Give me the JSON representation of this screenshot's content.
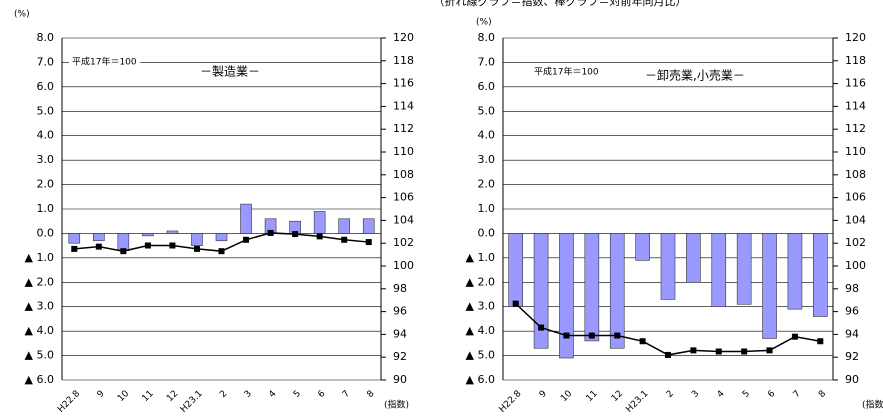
{
  "title": "（折れ線グラフ＝指数、棒グラフ＝対前年同月比）",
  "chart_data": [
    {
      "type": "bar",
      "ylabel": "(%)",
      "y2label": "(指数)",
      "annotations": [
        "平成17年＝100",
        "－製造業－"
      ],
      "categories": [
        "H22.8",
        "9",
        "10",
        "11",
        "12",
        "H23.1",
        "2",
        "3",
        "4",
        "5",
        "6",
        "7",
        "8"
      ],
      "series": [
        {
          "type": "bar",
          "color": "#9999ff",
          "values": [
            -0.4,
            -0.3,
            -0.7,
            -0.1,
            0.1,
            -0.5,
            -0.3,
            1.2,
            0.6,
            0.5,
            0.9,
            0.6,
            0.6
          ]
        },
        {
          "type": "line",
          "axis": "y2",
          "color": "#000000",
          "values": [
            101.5,
            101.7,
            101.3,
            101.8,
            101.8,
            101.5,
            101.3,
            102.3,
            102.9,
            102.8,
            102.6,
            102.3,
            102.1
          ]
        }
      ],
      "ylim": [
        -6,
        8
      ],
      "yticks": [
        {
          "value": 8,
          "label": "8.0"
        },
        {
          "value": 7,
          "label": "7.0"
        },
        {
          "value": 6,
          "label": "6.0"
        },
        {
          "value": 5,
          "label": "5.0"
        },
        {
          "value": 4,
          "label": "4.0"
        },
        {
          "value": 3,
          "label": "3.0"
        },
        {
          "value": 2,
          "label": "2.0"
        },
        {
          "value": 1,
          "label": "1.0"
        },
        {
          "value": 0,
          "label": "0.0"
        },
        {
          "value": -1,
          "label": "▲ 1.0"
        },
        {
          "value": -2,
          "label": "▲ 2.0"
        },
        {
          "value": -3,
          "label": "▲ 3.0"
        },
        {
          "value": -4,
          "label": "▲ 4.0"
        },
        {
          "value": -5,
          "label": "▲ 5.0"
        },
        {
          "value": -6,
          "label": "▲ 6.0"
        }
      ],
      "y2lim": [
        90,
        120
      ],
      "y2ticks": [
        120,
        118,
        116,
        114,
        112,
        110,
        108,
        106,
        104,
        102,
        100,
        98,
        96,
        94,
        92,
        90
      ],
      "grid": true
    },
    {
      "type": "bar",
      "ylabel": "(%)",
      "y2label": "(指数)",
      "annotations": [
        "平成17年＝100",
        "－卸売業,小売業－"
      ],
      "categories": [
        "H22.8",
        "9",
        "10",
        "11",
        "12",
        "H23.1",
        "2",
        "3",
        "4",
        "5",
        "6",
        "7",
        "8"
      ],
      "series": [
        {
          "type": "bar",
          "color": "#9999ff",
          "values": [
            -3.0,
            -4.7,
            -5.1,
            -4.4,
            -4.7,
            -1.1,
            -2.7,
            -2.0,
            -3.0,
            -2.9,
            -4.3,
            -3.1,
            -3.4
          ]
        },
        {
          "type": "line",
          "axis": "y2",
          "color": "#000000",
          "values": [
            96.7,
            94.6,
            93.9,
            93.9,
            93.9,
            93.4,
            92.2,
            92.6,
            92.5,
            92.5,
            92.6,
            93.8,
            93.4
          ]
        }
      ],
      "ylim": [
        -6,
        8
      ],
      "yticks": [
        {
          "value": 8,
          "label": "8.0"
        },
        {
          "value": 7,
          "label": "7.0"
        },
        {
          "value": 6,
          "label": "6.0"
        },
        {
          "value": 5,
          "label": "5.0"
        },
        {
          "value": 4,
          "label": "4.0"
        },
        {
          "value": 3,
          "label": "3.0"
        },
        {
          "value": 2,
          "label": "2.0"
        },
        {
          "value": 1,
          "label": "1.0"
        },
        {
          "value": 0,
          "label": "0.0"
        },
        {
          "value": -1,
          "label": "▲ 1.0"
        },
        {
          "value": -2,
          "label": "▲ 2.0"
        },
        {
          "value": -3,
          "label": "▲ 3.0"
        },
        {
          "value": -4,
          "label": "▲ 4.0"
        },
        {
          "value": -5,
          "label": "▲ 5.0"
        },
        {
          "value": -6,
          "label": "▲ 6.0"
        }
      ],
      "y2lim": [
        90,
        120
      ],
      "y2ticks": [
        120,
        118,
        116,
        114,
        112,
        110,
        108,
        106,
        104,
        102,
        100,
        98,
        96,
        94,
        92,
        90
      ],
      "grid": true
    }
  ]
}
